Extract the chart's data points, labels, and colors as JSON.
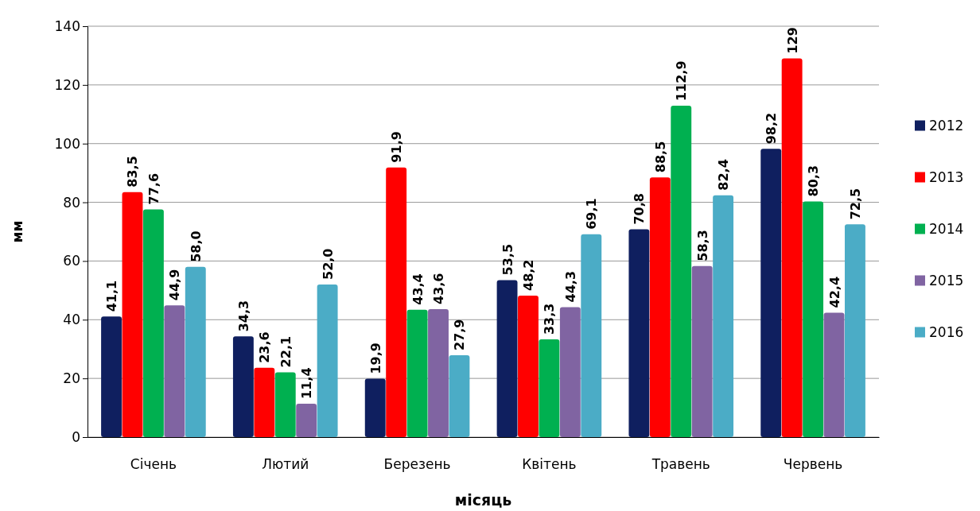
{
  "chart_data": {
    "type": "bar",
    "xlabel": "місяць",
    "ylabel": "мм",
    "categories": [
      "Січень",
      "Лютий",
      "Березень",
      "Квітень",
      "Травень",
      "Червень"
    ],
    "series": [
      {
        "name": "2012",
        "color": "#0f1f5f",
        "values": [
          41.1,
          34.3,
          19.9,
          53.5,
          70.8,
          98.2
        ],
        "value_labels": [
          "41,1",
          "34,3",
          "19,9",
          "53,5",
          "70,8",
          "98,2"
        ]
      },
      {
        "name": "2013",
        "color": "#ff0000",
        "values": [
          83.5,
          23.6,
          91.9,
          48.2,
          88.5,
          129
        ],
        "value_labels": [
          "83,5",
          "23,6",
          "91,9",
          "48,2",
          "88,5",
          "129"
        ]
      },
      {
        "name": "2014",
        "color": "#00b050",
        "values": [
          77.6,
          22.1,
          43.4,
          33.3,
          112.9,
          80.3
        ],
        "value_labels": [
          "77,6",
          "22,1",
          "43,4",
          "33,3",
          "112,9",
          "80,3"
        ]
      },
      {
        "name": "2015",
        "color": "#8064a2",
        "values": [
          44.9,
          11.4,
          43.6,
          44.3,
          58.3,
          42.4
        ],
        "value_labels": [
          "44,9",
          "11,4",
          "43,6",
          "44,3",
          "58,3",
          "42,4"
        ]
      },
      {
        "name": "2016",
        "color": "#4bacc6",
        "values": [
          58.0,
          52.0,
          27.9,
          69.1,
          82.4,
          72.5
        ],
        "value_labels": [
          "58,0",
          "52,0",
          "27,9",
          "69,1",
          "82,4",
          "72,5"
        ]
      }
    ],
    "ylim": [
      0,
      140
    ],
    "yticks": [
      0,
      20,
      40,
      60,
      80,
      100,
      120,
      140
    ],
    "grid": "y",
    "legend": "right"
  }
}
